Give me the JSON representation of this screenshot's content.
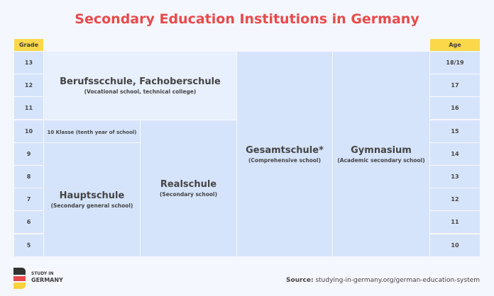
{
  "title": "Secondary Education Institutions in Germany",
  "headers": {
    "grade": "Grade",
    "age": "Age"
  },
  "grades": [
    "13",
    "12",
    "11",
    "10",
    "9",
    "8",
    "7",
    "6",
    "5"
  ],
  "ages": [
    "18/19",
    "17",
    "16",
    "15",
    "14",
    "13",
    "12",
    "11",
    "10"
  ],
  "schools": {
    "berufs": {
      "name": "Berufsscchule, Fachoberschule",
      "desc": "(Vocational school, technical college)"
    },
    "klasse10": {
      "name": "10 Klasse (tenth year of school)"
    },
    "haupt": {
      "name": "Hauptschule",
      "desc": "(Secondary general school)"
    },
    "real": {
      "name": "Realschule",
      "desc": "(Secondary school)"
    },
    "gesamt": {
      "name": "Gesamtschule*",
      "desc": "(Comprehensive school)"
    },
    "gym": {
      "name": "Gymnasium",
      "desc": "(Academic secondary school)"
    }
  },
  "logo": {
    "line1": "STUDY IN",
    "line2": "GERMANY"
  },
  "source": {
    "label": "Source:",
    "text": "studying-in-germany.org/german-education-system"
  },
  "colors": {
    "title": "#e84a4a",
    "header": "#fbd84a",
    "cell": "#d6e4fb",
    "light_cell": "#e8f0fe"
  }
}
